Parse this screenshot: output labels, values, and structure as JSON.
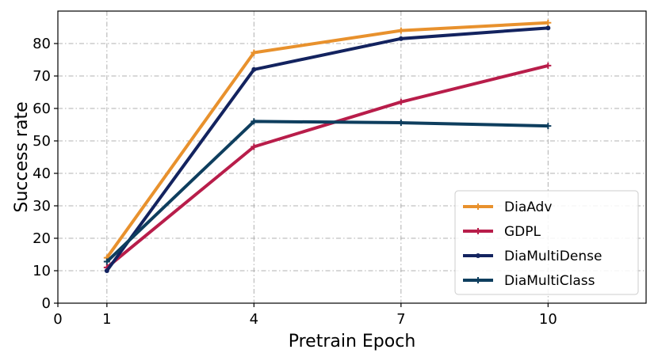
{
  "chart_data": {
    "type": "line",
    "xlabel": "Pretrain Epoch",
    "ylabel": "Success rate",
    "xlim": [
      0,
      12
    ],
    "ylim": [
      0,
      90
    ],
    "xticks": [
      0,
      1,
      4,
      7,
      10
    ],
    "yticks": [
      0,
      10,
      20,
      30,
      40,
      50,
      60,
      70,
      80
    ],
    "grid": true,
    "legend_position": "bottom-right",
    "x": [
      1,
      4,
      7,
      10
    ],
    "series": [
      {
        "name": "DiaAdv",
        "color": "#E8912D",
        "marker": "plus",
        "values": [
          14,
          77.2,
          84,
          86.4
        ]
      },
      {
        "name": "GDPL",
        "color": "#B81D4A",
        "marker": "plus",
        "values": [
          11,
          48.2,
          62,
          73.2
        ]
      },
      {
        "name": "DiaMultiDense",
        "color": "#13235F",
        "marker": "dot",
        "values": [
          10,
          72,
          81.5,
          84.8
        ]
      },
      {
        "name": "DiaMultiClass",
        "color": "#0E3E5E",
        "marker": "plus",
        "values": [
          12.8,
          56,
          55.6,
          54.6
        ]
      }
    ]
  }
}
